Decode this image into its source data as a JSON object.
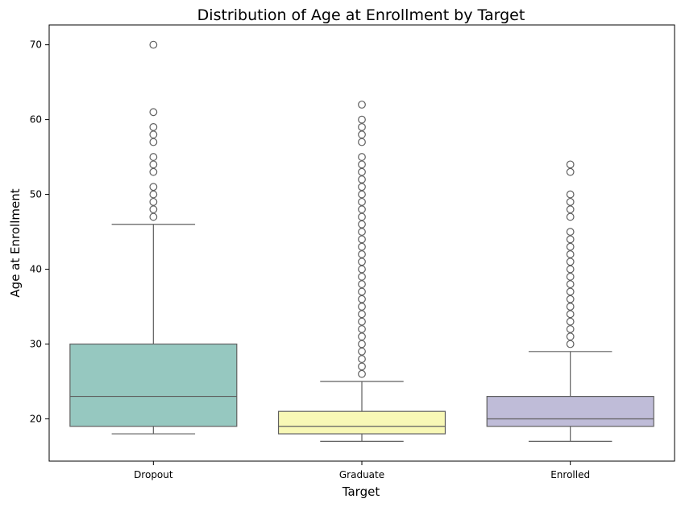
{
  "chart_data": {
    "type": "box",
    "title": "Distribution of Age at Enrollment by Target",
    "xlabel": "Target",
    "ylabel": "Age at Enrollment",
    "ylim": [
      14.35,
      72.65
    ],
    "yticks": [
      20,
      30,
      40,
      50,
      60,
      70
    ],
    "grid": false,
    "categories": [
      "Dropout",
      "Graduate",
      "Enrolled"
    ],
    "boxes": [
      {
        "category": "Dropout",
        "color": "#96c8c0",
        "whisker_low": 18,
        "q1": 19,
        "median": 23,
        "q3": 30,
        "whisker_high": 46,
        "outliers": [
          47,
          48,
          49,
          50,
          51,
          53,
          54,
          55,
          57,
          58,
          59,
          61,
          70
        ]
      },
      {
        "category": "Graduate",
        "color": "#f8f8b6",
        "whisker_low": 17,
        "q1": 18,
        "median": 19,
        "q3": 21,
        "whisker_high": 25,
        "outliers": [
          26,
          27,
          28,
          29,
          30,
          31,
          32,
          33,
          34,
          35,
          36,
          37,
          38,
          39,
          40,
          41,
          42,
          43,
          44,
          45,
          46,
          47,
          48,
          49,
          50,
          51,
          52,
          53,
          54,
          55,
          57,
          58,
          59,
          60,
          62
        ]
      },
      {
        "category": "Enrolled",
        "color": "#bfbcd8",
        "whisker_low": 17,
        "q1": 19,
        "median": 20,
        "q3": 23,
        "whisker_high": 29,
        "outliers": [
          30,
          31,
          32,
          33,
          34,
          35,
          36,
          37,
          38,
          39,
          40,
          41,
          42,
          43,
          44,
          45,
          47,
          48,
          49,
          50,
          53,
          54
        ]
      }
    ]
  }
}
